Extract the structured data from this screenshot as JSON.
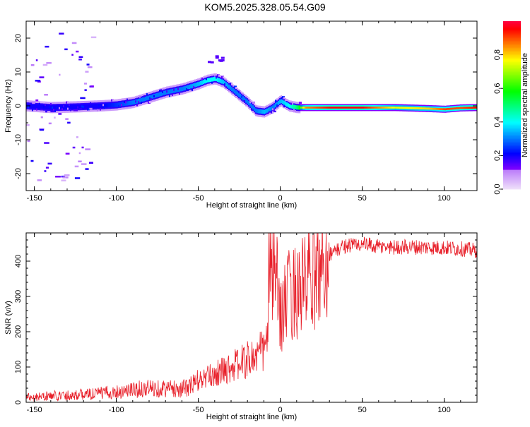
{
  "figure_title": "KOM5.2025.328.05.54.G09",
  "chart_data": [
    {
      "type": "heatmap",
      "title": "KOM5.2025.328.05.54.G09",
      "xlabel": "Height of straight line (km)",
      "ylabel": "Frequency (Hz)",
      "xlim": [
        -155,
        120
      ],
      "ylim": [
        -25,
        25
      ],
      "xticks": [
        -150,
        -100,
        -50,
        0,
        50,
        100
      ],
      "yticks": [
        -20,
        -10,
        0,
        10,
        20
      ],
      "colorbar": {
        "label": "Normalized spectral amplitude",
        "range": [
          0,
          1
        ],
        "ticks": [
          0.0,
          0.2,
          0.4,
          0.6,
          0.8
        ]
      },
      "ridge": {
        "x": [
          -155,
          -140,
          -125,
          -110,
          -100,
          -90,
          -80,
          -70,
          -60,
          -50,
          -45,
          -40,
          -35,
          -30,
          -25,
          -20,
          -15,
          -10,
          -5,
          0,
          5,
          10,
          15,
          30,
          50,
          70,
          90,
          100,
          110,
          120
        ],
        "y": [
          0,
          -0.5,
          -0.3,
          0,
          0.3,
          1,
          2.5,
          4,
          5,
          6.5,
          7.5,
          8,
          7,
          5,
          3,
          1,
          -1.5,
          -1.8,
          -0.5,
          1.5,
          0,
          -0.5,
          -0.5,
          -0.5,
          -0.5,
          -0.5,
          -0.8,
          -1,
          -0.6,
          -0.5
        ],
        "amplitude": [
          0.2,
          0.2,
          0.2,
          0.2,
          0.25,
          0.3,
          0.3,
          0.3,
          0.3,
          0.35,
          0.4,
          0.4,
          0.35,
          0.3,
          0.3,
          0.3,
          0.3,
          0.35,
          0.3,
          0.35,
          0.4,
          0.5,
          0.85,
          0.95,
          0.95,
          0.75,
          0.8,
          0.9,
          0.9,
          0.95
        ]
      }
    },
    {
      "type": "line",
      "xlabel": "Height of straight line (km)",
      "ylabel": "SNR (v/v)",
      "xlim": [
        -155,
        120
      ],
      "ylim": [
        0,
        480
      ],
      "xticks": [
        -150,
        -100,
        -50,
        0,
        50,
        100
      ],
      "yticks": [
        0,
        100,
        200,
        300,
        400
      ],
      "series": [
        {
          "name": "SNR",
          "color": "#e8202a",
          "x": [
            -155,
            -140,
            -120,
            -100,
            -80,
            -60,
            -55,
            -50,
            -45,
            -40,
            -35,
            -30,
            -25,
            -20,
            -15,
            -10,
            -8,
            -7,
            -5,
            -3,
            0,
            5,
            10,
            15,
            20,
            25,
            30,
            40,
            50,
            60,
            80,
            100,
            110,
            120
          ],
          "y": [
            15,
            18,
            22,
            30,
            40,
            38,
            45,
            60,
            70,
            80,
            90,
            100,
            110,
            120,
            130,
            150,
            170,
            360,
            380,
            360,
            250,
            300,
            320,
            330,
            360,
            390,
            420,
            445,
            448,
            440,
            440,
            438,
            435,
            430
          ]
        }
      ]
    }
  ]
}
